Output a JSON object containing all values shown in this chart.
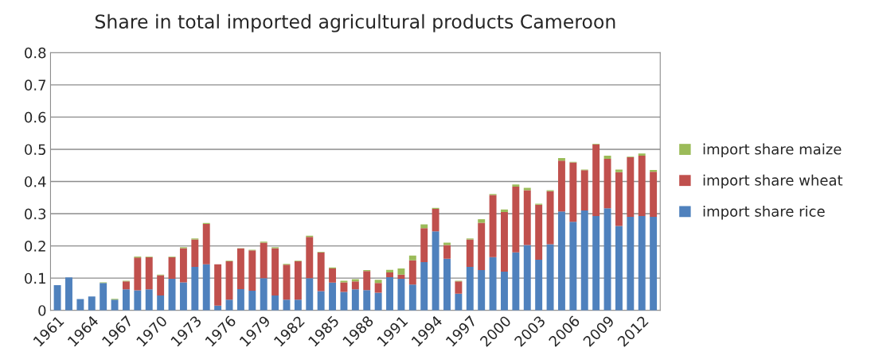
{
  "chart_data": {
    "type": "bar",
    "title": "Share in total imported agricultural products Cameroon",
    "stacked": true,
    "categories": [
      "1961",
      null,
      null,
      "1964",
      null,
      null,
      "1967",
      null,
      null,
      "1970",
      null,
      null,
      "1973",
      null,
      null,
      "1976",
      null,
      null,
      "1979",
      null,
      null,
      "1982",
      null,
      null,
      "1985",
      null,
      null,
      "1988",
      null,
      null,
      "1991",
      null,
      null,
      "1994",
      null,
      null,
      "1997",
      null,
      null,
      "2000",
      null,
      null,
      "2003",
      null,
      null,
      "2006",
      null,
      null,
      "2009",
      null,
      null,
      "2012",
      null
    ],
    "series": [
      {
        "name": "import share rice",
        "color": "#4f81bd",
        "values": [
          0.078,
          0.102,
          0.035,
          0.043,
          0.085,
          0.033,
          0.065,
          0.062,
          0.065,
          0.046,
          0.098,
          0.087,
          0.135,
          0.143,
          0.015,
          0.033,
          0.066,
          0.061,
          0.1,
          0.046,
          0.033,
          0.033,
          0.1,
          0.06,
          0.086,
          0.057,
          0.065,
          0.063,
          0.055,
          0.103,
          0.098,
          0.08,
          0.15,
          0.245,
          0.16,
          0.052,
          0.135,
          0.125,
          0.165,
          0.12,
          0.18,
          0.203,
          0.157,
          0.205,
          0.307,
          0.275,
          0.31,
          0.293,
          0.317,
          0.262,
          0.29,
          0.293,
          0.29
        ]
      },
      {
        "name": "import share wheat",
        "color": "#c0504d",
        "values": [
          null,
          null,
          null,
          null,
          null,
          null,
          0.025,
          0.102,
          0.1,
          0.063,
          0.067,
          0.106,
          0.085,
          0.125,
          0.128,
          0.119,
          0.126,
          0.125,
          0.11,
          0.147,
          0.109,
          0.119,
          0.128,
          0.12,
          0.044,
          0.03,
          0.025,
          0.059,
          0.03,
          0.015,
          0.013,
          0.075,
          0.105,
          0.07,
          0.043,
          0.038,
          0.085,
          0.147,
          0.193,
          0.185,
          0.204,
          0.17,
          0.171,
          0.165,
          0.158,
          0.184,
          0.125,
          0.222,
          0.153,
          0.167,
          0.185,
          0.187,
          0.14
        ]
      },
      {
        "name": "import share maize",
        "color": "#9bbb59",
        "values": [
          null,
          null,
          null,
          null,
          0.002,
          0.003,
          0.002,
          0.003,
          0.002,
          0.002,
          0.002,
          0.003,
          0.003,
          0.003,
          null,
          0.002,
          0.001,
          0.002,
          0.003,
          0.003,
          0.002,
          0.002,
          0.004,
          0.002,
          0.003,
          0.005,
          0.007,
          0.003,
          0.01,
          0.008,
          0.019,
          0.015,
          0.012,
          0.003,
          0.007,
          0.002,
          0.003,
          0.011,
          0.003,
          0.008,
          0.007,
          0.007,
          0.003,
          0.003,
          0.008,
          0.002,
          0.002,
          0.002,
          0.01,
          0.008,
          0.002,
          0.007,
          0.006
        ]
      }
    ],
    "ylim": [
      0,
      0.8
    ],
    "yticks": [
      0,
      0.1,
      0.2,
      0.3,
      0.4,
      0.5,
      0.6,
      0.7,
      0.8
    ],
    "grid": "y",
    "legend": "right"
  }
}
